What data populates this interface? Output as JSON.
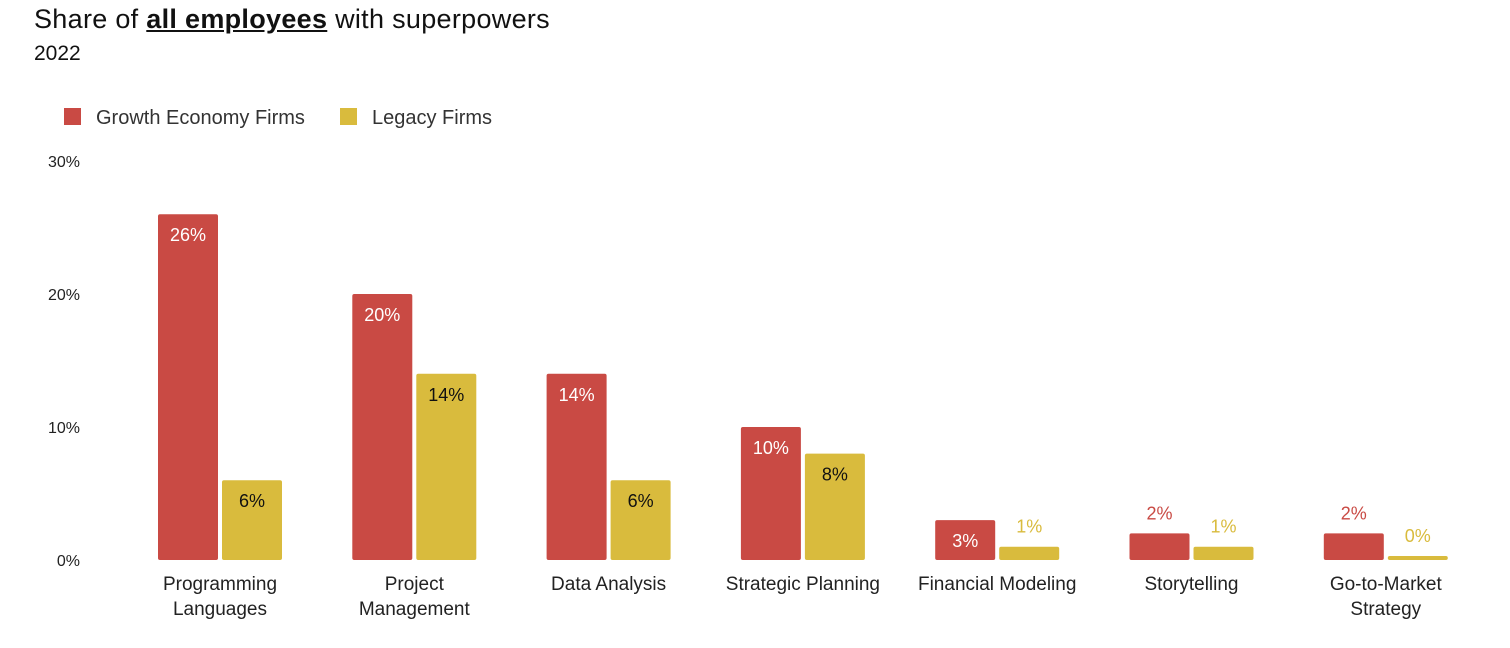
{
  "header": {
    "title_prefix": "Share of ",
    "title_emphasis": "all employees",
    "title_suffix": " with superpowers",
    "subtitle": "2022"
  },
  "colors": {
    "growth": "#c94a44",
    "legacy": "#d9bb3d"
  },
  "chart_data": {
    "type": "bar",
    "title": "Share of all employees with superpowers",
    "subtitle": "2022",
    "categories": [
      [
        "Programming",
        "Languages"
      ],
      [
        "Project",
        "Management"
      ],
      [
        "Data Analysis"
      ],
      [
        "Strategic Planning"
      ],
      [
        "Financial Modeling"
      ],
      [
        "Storytelling"
      ],
      [
        "Go-to-Market",
        "Strategy"
      ]
    ],
    "series": [
      {
        "name": "Growth Economy Firms",
        "values": [
          26,
          20,
          14,
          10,
          3,
          2,
          2
        ],
        "labels": [
          "26%",
          "20%",
          "14%",
          "10%",
          "3%",
          "2%",
          "2%"
        ]
      },
      {
        "name": "Legacy Firms",
        "values": [
          6,
          14,
          6,
          8,
          1,
          1,
          0.3
        ],
        "labels": [
          "6%",
          "14%",
          "6%",
          "8%",
          "1%",
          "1%",
          "0%"
        ]
      }
    ],
    "yticks": [
      0,
      10,
      20,
      30
    ],
    "ytick_labels": [
      "0%",
      "10%",
      "20%",
      "30%"
    ],
    "ylim": [
      0,
      30
    ],
    "legend_position": "top-left",
    "grid": false
  }
}
